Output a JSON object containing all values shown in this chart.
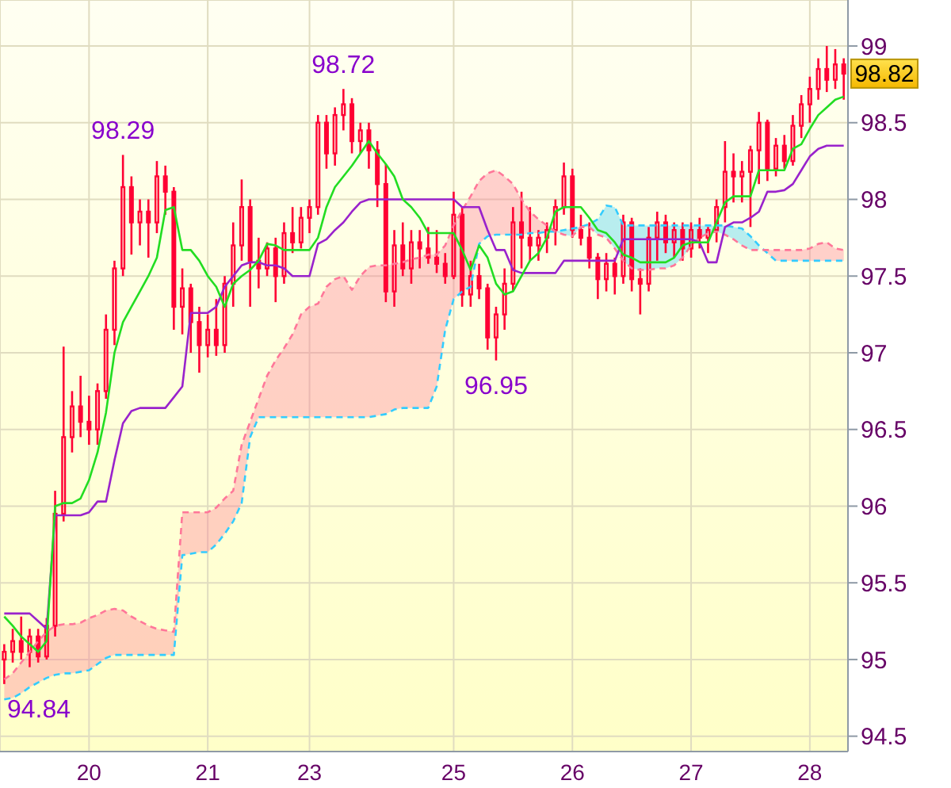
{
  "chart_data": {
    "type": "candlestick",
    "color": "#ff0033",
    "categories": [
      null,
      null,
      null,
      null,
      null,
      null,
      null,
      null,
      null,
      null,
      "20",
      null,
      null,
      null,
      null,
      null,
      null,
      null,
      null,
      null,
      null,
      null,
      null,
      null,
      "21",
      null,
      null,
      null,
      null,
      null,
      null,
      null,
      null,
      null,
      null,
      null,
      "23",
      null,
      null,
      null,
      null,
      null,
      null,
      null,
      null,
      null,
      null,
      null,
      null,
      null,
      null,
      null,
      null,
      "25",
      null,
      null,
      null,
      null,
      null,
      null,
      null,
      null,
      null,
      null,
      null,
      null,
      null,
      "26",
      null,
      null,
      null,
      null,
      null,
      null,
      null,
      null,
      null,
      null,
      null,
      null,
      null,
      "27",
      null,
      null,
      null,
      null,
      null,
      null,
      null,
      null,
      null,
      null,
      null,
      null,
      null,
      "28",
      null,
      null,
      null,
      null
    ],
    "ohlc": [
      [
        95.0,
        95.1,
        94.84,
        95.05
      ],
      [
        95.05,
        95.2,
        94.98,
        95.12
      ],
      [
        95.12,
        95.28,
        95.0,
        95.05
      ],
      [
        95.05,
        95.2,
        94.95,
        95.15
      ],
      [
        95.15,
        95.2,
        94.98,
        95.02
      ],
      [
        95.02,
        95.27,
        95.0,
        95.22
      ],
      [
        95.22,
        96.1,
        95.15,
        95.95
      ],
      [
        95.95,
        97.04,
        95.9,
        96.45
      ],
      [
        96.45,
        96.75,
        96.35,
        96.65
      ],
      [
        96.65,
        96.85,
        96.45,
        96.55
      ],
      [
        96.55,
        96.72,
        96.4,
        96.5
      ],
      [
        96.5,
        96.8,
        96.4,
        96.75
      ],
      [
        96.75,
        97.25,
        96.7,
        97.15
      ],
      [
        97.15,
        97.6,
        97.05,
        97.55
      ],
      [
        97.55,
        98.29,
        97.5,
        98.08
      ],
      [
        98.08,
        98.15,
        97.64,
        97.85
      ],
      [
        97.85,
        98.0,
        97.7,
        97.92
      ],
      [
        97.92,
        98.0,
        97.62,
        97.85
      ],
      [
        97.85,
        98.25,
        97.78,
        98.15
      ],
      [
        98.15,
        98.22,
        97.9,
        98.05
      ],
      [
        98.05,
        98.08,
        97.15,
        97.3
      ],
      [
        97.3,
        97.55,
        97.12,
        97.42
      ],
      [
        97.42,
        97.45,
        97.0,
        97.2
      ],
      [
        97.2,
        97.3,
        96.87,
        97.05
      ],
      [
        97.05,
        97.25,
        96.97,
        97.15
      ],
      [
        97.15,
        97.35,
        96.98,
        97.05
      ],
      [
        97.05,
        97.5,
        97.0,
        97.45
      ],
      [
        97.45,
        97.85,
        97.3,
        97.7
      ],
      [
        97.7,
        98.13,
        97.6,
        97.95
      ],
      [
        97.95,
        98.0,
        97.3,
        97.6
      ],
      [
        97.6,
        97.75,
        97.42,
        97.55
      ],
      [
        97.55,
        97.72,
        97.5,
        97.68
      ],
      [
        97.68,
        97.75,
        97.33,
        97.5
      ],
      [
        97.5,
        97.85,
        97.45,
        97.78
      ],
      [
        97.78,
        97.95,
        97.65,
        97.72
      ],
      [
        97.72,
        97.95,
        97.68,
        97.88
      ],
      [
        97.88,
        98.0,
        97.78,
        97.95
      ],
      [
        97.95,
        98.55,
        97.9,
        98.5
      ],
      [
        98.5,
        98.55,
        98.2,
        98.3
      ],
      [
        98.3,
        98.6,
        98.22,
        98.55
      ],
      [
        98.55,
        98.72,
        98.45,
        98.62
      ],
      [
        98.62,
        98.66,
        98.3,
        98.38
      ],
      [
        98.38,
        98.5,
        98.3,
        98.45
      ],
      [
        98.45,
        98.5,
        98.2,
        98.32
      ],
      [
        98.32,
        98.38,
        97.95,
        98.1
      ],
      [
        98.1,
        98.23,
        97.33,
        97.4
      ],
      [
        97.4,
        97.8,
        97.3,
        97.7
      ],
      [
        97.7,
        97.85,
        97.5,
        97.55
      ],
      [
        97.55,
        97.8,
        97.45,
        97.72
      ],
      [
        97.72,
        97.8,
        97.55,
        97.68
      ],
      [
        97.68,
        97.82,
        97.58,
        97.62
      ],
      [
        97.62,
        97.8,
        97.52,
        97.58
      ],
      [
        97.58,
        97.65,
        97.45,
        97.5
      ],
      [
        97.5,
        98.05,
        97.48,
        97.9
      ],
      [
        97.9,
        97.95,
        97.3,
        97.38
      ],
      [
        97.38,
        97.6,
        97.3,
        97.5
      ],
      [
        97.5,
        97.58,
        97.35,
        97.42
      ],
      [
        97.42,
        97.45,
        97.02,
        97.1
      ],
      [
        97.1,
        97.3,
        96.95,
        97.25
      ],
      [
        97.25,
        97.55,
        97.15,
        97.45
      ],
      [
        97.45,
        97.95,
        97.4,
        97.85
      ],
      [
        97.85,
        98.05,
        97.55,
        97.75
      ],
      [
        97.75,
        97.95,
        97.6,
        97.7
      ],
      [
        97.7,
        97.8,
        97.6,
        97.75
      ],
      [
        97.75,
        97.85,
        97.65,
        97.8
      ],
      [
        97.8,
        98.0,
        97.7,
        97.95
      ],
      [
        97.95,
        98.24,
        97.9,
        98.15
      ],
      [
        98.15,
        98.2,
        97.75,
        97.8
      ],
      [
        97.8,
        97.9,
        97.7,
        97.75
      ],
      [
        97.75,
        97.85,
        97.55,
        97.62
      ],
      [
        97.62,
        97.65,
        97.35,
        97.48
      ],
      [
        97.48,
        97.65,
        97.4,
        97.58
      ],
      [
        97.58,
        97.62,
        97.38,
        97.5
      ],
      [
        97.5,
        97.9,
        97.45,
        97.85
      ],
      [
        97.85,
        97.88,
        97.4,
        97.48
      ],
      [
        97.48,
        97.55,
        97.25,
        97.45
      ],
      [
        97.45,
        97.82,
        97.4,
        97.75
      ],
      [
        97.75,
        97.92,
        97.6,
        97.85
      ],
      [
        97.85,
        97.9,
        97.65,
        97.72
      ],
      [
        97.72,
        97.85,
        97.62,
        97.8
      ],
      [
        97.8,
        97.85,
        97.6,
        97.68
      ],
      [
        97.68,
        97.85,
        97.62,
        97.8
      ],
      [
        97.8,
        97.88,
        97.68,
        97.75
      ],
      [
        97.75,
        97.82,
        97.65,
        97.8
      ],
      [
        97.8,
        98.0,
        97.72,
        97.95
      ],
      [
        97.95,
        98.38,
        97.85,
        98.18
      ],
      [
        98.18,
        98.3,
        97.98,
        98.15
      ],
      [
        98.15,
        98.25,
        97.98,
        98.18
      ],
      [
        98.18,
        98.35,
        97.82,
        98.32
      ],
      [
        98.32,
        98.57,
        98.1,
        98.5
      ],
      [
        98.5,
        98.52,
        98.12,
        98.2
      ],
      [
        98.2,
        98.4,
        98.15,
        98.35
      ],
      [
        98.35,
        98.42,
        98.2,
        98.25
      ],
      [
        98.25,
        98.55,
        98.22,
        98.48
      ],
      [
        98.48,
        98.68,
        98.4,
        98.62
      ],
      [
        98.62,
        98.8,
        98.5,
        98.72
      ],
      [
        98.72,
        98.92,
        98.65,
        98.85
      ],
      [
        98.85,
        99.0,
        98.7,
        98.78
      ],
      [
        98.78,
        98.98,
        98.72,
        98.88
      ],
      [
        98.88,
        98.92,
        98.65,
        98.82
      ]
    ],
    "series": [
      {
        "type": "line",
        "color": "#33ccff",
        "line_style": "dashed",
        "values": [
          94.74,
          94.75,
          94.78,
          94.82,
          94.85,
          94.88,
          94.9,
          94.91,
          94.91,
          94.92,
          94.93,
          94.97,
          95.01,
          95.03,
          95.03,
          95.03,
          95.03,
          95.03,
          95.03,
          95.03,
          95.03,
          95.68,
          95.69,
          95.7,
          95.7,
          95.75,
          95.82,
          95.9,
          96.02,
          96.45,
          96.58,
          96.58,
          96.58,
          96.58,
          96.58,
          96.58,
          96.58,
          96.58,
          96.58,
          96.58,
          96.58,
          96.58,
          96.58,
          96.58,
          96.59,
          96.6,
          96.63,
          96.64,
          96.64,
          96.64,
          96.64,
          96.78,
          97.15,
          97.35,
          97.4,
          97.43,
          97.71,
          97.76,
          97.77,
          97.77,
          97.77,
          97.77,
          97.78,
          97.78,
          97.79,
          97.79,
          97.8,
          97.81,
          97.82,
          97.84,
          97.87,
          97.96,
          97.95,
          97.83,
          97.83,
          97.83,
          97.83,
          97.83,
          97.83,
          97.83,
          97.83,
          97.83,
          97.83,
          97.83,
          97.83,
          97.83,
          97.82,
          97.81,
          97.76,
          97.7,
          97.65,
          97.6,
          97.6,
          97.6,
          97.6,
          97.6,
          97.6,
          97.6,
          97.6,
          97.6
        ],
        "lower": [
          null,
          null,
          null,
          null,
          null,
          null,
          null,
          null,
          null,
          null,
          null,
          null,
          null,
          null,
          null,
          null,
          null,
          null,
          null,
          null,
          null,
          null,
          null,
          null,
          null,
          null,
          null,
          null,
          null,
          null,
          null,
          null,
          null,
          null,
          null,
          null,
          null,
          null,
          null,
          null,
          null,
          null,
          null,
          null,
          null,
          null,
          null,
          null,
          null,
          null,
          null,
          null,
          null,
          null,
          null,
          null,
          null,
          null,
          null,
          null,
          null,
          null,
          null,
          null,
          null,
          97.79,
          97.77,
          97.76,
          97.82,
          97.82,
          97.77,
          97.75,
          97.68,
          97.6,
          97.55,
          97.54,
          97.54,
          97.55,
          97.55,
          97.57,
          97.62,
          97.7,
          97.75,
          97.78,
          97.79,
          97.77,
          97.74,
          97.7,
          97.67,
          97.67,
          null,
          null,
          null,
          null,
          null,
          null,
          null,
          null,
          null,
          null
        ],
        "upper": [
          null,
          null,
          null,
          null,
          null,
          null,
          null,
          null,
          null,
          null,
          null,
          null,
          null,
          null,
          null,
          null,
          null,
          null,
          null,
          null,
          null,
          null,
          null,
          null,
          null,
          null,
          null,
          null,
          null,
          null,
          null,
          null,
          null,
          null,
          null,
          null,
          null,
          null,
          null,
          null,
          null,
          null,
          null,
          null,
          null,
          null,
          null,
          null,
          null,
          null,
          null,
          null,
          null,
          null,
          null,
          null,
          null,
          null,
          null,
          null,
          null,
          null,
          null,
          null,
          null,
          97.79,
          97.8,
          97.81,
          97.82,
          97.84,
          97.87,
          97.96,
          97.95,
          97.83,
          97.83,
          97.83,
          97.83,
          97.83,
          97.83,
          97.83,
          97.83,
          97.83,
          97.83,
          97.83,
          97.83,
          97.83,
          97.82,
          97.81,
          97.76,
          97.7,
          null,
          null,
          null,
          null,
          null,
          null,
          null,
          null,
          null,
          null
        ]
      },
      {
        "type": "line",
        "color": "#ff7799",
        "line_style": "dashed",
        "values": [
          94.87,
          94.91,
          94.98,
          95.05,
          95.12,
          95.18,
          95.22,
          95.23,
          95.23,
          95.24,
          95.27,
          95.29,
          95.32,
          95.33,
          95.32,
          95.28,
          95.25,
          95.22,
          95.2,
          95.19,
          95.18,
          95.96,
          95.96,
          95.96,
          95.96,
          95.99,
          96.05,
          96.1,
          96.4,
          96.55,
          96.7,
          96.85,
          96.95,
          97.03,
          97.12,
          97.25,
          97.3,
          97.32,
          97.43,
          97.48,
          97.5,
          97.41,
          97.5,
          97.56,
          97.57,
          97.57,
          97.58,
          97.59,
          97.61,
          97.62,
          97.64,
          97.64,
          97.7,
          97.83,
          97.93,
          98.02,
          98.12,
          98.17,
          98.19,
          98.15,
          98.1,
          98.0,
          97.92,
          97.87,
          97.83,
          97.79,
          97.77,
          97.76,
          97.82,
          97.82,
          97.77,
          97.75,
          97.68,
          97.6,
          97.55,
          97.54,
          97.54,
          97.55,
          97.55,
          97.57,
          97.62,
          97.7,
          97.75,
          97.78,
          97.79,
          97.77,
          97.74,
          97.7,
          97.67,
          97.67,
          97.67,
          97.67,
          97.67,
          97.67,
          97.67,
          97.68,
          97.71,
          97.72,
          97.68,
          97.67
        ],
        "lower": [
          94.74,
          94.75,
          94.78,
          94.82,
          94.85,
          94.88,
          94.9,
          94.91,
          94.91,
          94.92,
          94.93,
          94.97,
          95.01,
          95.03,
          95.03,
          95.03,
          95.03,
          95.03,
          95.03,
          95.03,
          95.03,
          95.68,
          95.69,
          95.7,
          95.7,
          95.75,
          95.82,
          95.9,
          96.02,
          96.45,
          96.58,
          96.58,
          96.58,
          96.58,
          96.58,
          96.58,
          96.58,
          96.58,
          96.58,
          96.58,
          96.58,
          96.58,
          96.58,
          96.58,
          96.59,
          96.6,
          96.63,
          96.64,
          96.64,
          96.64,
          96.64,
          96.78,
          97.15,
          97.35,
          97.4,
          97.43,
          97.71,
          97.76,
          97.77,
          97.77,
          97.77,
          97.77,
          97.78,
          97.78,
          97.79,
          97.79,
          null,
          null,
          null,
          null,
          null,
          null,
          null,
          null,
          null,
          null,
          null,
          null,
          null,
          null,
          null,
          null,
          null,
          null,
          null,
          null,
          null,
          null,
          null,
          null,
          97.65,
          97.6,
          97.6,
          97.6,
          97.6,
          97.6,
          97.6,
          97.6,
          97.6,
          97.6
        ],
        "upper": [
          94.87,
          94.91,
          94.98,
          95.05,
          95.12,
          95.18,
          95.22,
          95.23,
          95.23,
          95.24,
          95.27,
          95.29,
          95.32,
          95.33,
          95.32,
          95.28,
          95.25,
          95.22,
          95.2,
          95.19,
          95.18,
          95.96,
          95.96,
          95.96,
          95.96,
          95.99,
          96.05,
          96.1,
          96.4,
          96.55,
          96.7,
          96.85,
          96.95,
          97.03,
          97.12,
          97.25,
          97.3,
          97.32,
          97.43,
          97.48,
          97.5,
          97.41,
          97.5,
          97.56,
          97.57,
          97.57,
          97.58,
          97.59,
          97.61,
          97.62,
          97.64,
          97.64,
          97.7,
          97.83,
          97.93,
          98.02,
          98.12,
          98.17,
          98.19,
          98.15,
          98.1,
          98.0,
          97.92,
          97.87,
          97.83,
          97.79,
          null,
          null,
          null,
          null,
          null,
          null,
          null,
          null,
          null,
          null,
          null,
          null,
          null,
          null,
          null,
          null,
          null,
          null,
          null,
          null,
          null,
          null,
          null,
          null,
          97.67,
          97.67,
          97.67,
          97.67,
          97.67,
          97.68,
          97.71,
          97.72,
          97.68,
          97.67
        ]
      },
      {
        "type": "line",
        "color": "#9922cc",
        "values": [
          95.3,
          95.3,
          95.3,
          95.3,
          95.25,
          95.2,
          95.94,
          95.94,
          95.94,
          95.94,
          95.96,
          96.03,
          96.03,
          96.3,
          96.54,
          96.62,
          96.64,
          96.64,
          96.64,
          96.64,
          96.71,
          96.78,
          97.26,
          97.26,
          97.26,
          97.3,
          97.43,
          97.5,
          97.57,
          97.59,
          97.59,
          97.57,
          97.57,
          97.55,
          97.5,
          97.5,
          97.5,
          97.71,
          97.74,
          97.8,
          97.85,
          97.92,
          97.98,
          98.0,
          98.0,
          98.0,
          98.0,
          98.0,
          98.0,
          98.0,
          98.0,
          98.0,
          98.0,
          98.0,
          97.95,
          97.95,
          97.95,
          97.8,
          97.67,
          97.67,
          97.54,
          97.52,
          97.52,
          97.52,
          97.52,
          97.52,
          97.6,
          97.6,
          97.6,
          97.6,
          97.6,
          97.6,
          97.6,
          97.74,
          97.74,
          97.74,
          97.74,
          97.74,
          97.74,
          97.74,
          97.74,
          97.74,
          97.72,
          97.59,
          97.59,
          97.82,
          97.85,
          97.85,
          97.88,
          97.92,
          98.05,
          98.05,
          98.06,
          98.1,
          98.19,
          98.28,
          98.33,
          98.35,
          98.35,
          98.35
        ]
      },
      {
        "type": "line",
        "color": "#22dd22",
        "values": [
          95.28,
          95.22,
          95.15,
          95.1,
          95.05,
          95.12,
          96.0,
          96.02,
          96.02,
          96.05,
          96.17,
          96.35,
          96.61,
          97.0,
          97.2,
          97.3,
          97.4,
          97.5,
          97.62,
          97.93,
          97.95,
          97.67,
          97.67,
          97.6,
          97.5,
          97.43,
          97.3,
          97.45,
          97.5,
          97.54,
          97.6,
          97.71,
          97.7,
          97.67,
          97.67,
          97.67,
          97.67,
          97.75,
          97.95,
          98.08,
          98.15,
          98.22,
          98.3,
          98.38,
          98.3,
          98.23,
          98.15,
          98.0,
          97.95,
          97.88,
          97.78,
          97.78,
          97.78,
          97.78,
          97.67,
          97.54,
          97.7,
          97.62,
          97.45,
          97.38,
          97.4,
          97.5,
          97.6,
          97.65,
          97.75,
          97.92,
          97.95,
          97.95,
          97.95,
          97.88,
          97.8,
          97.78,
          97.72,
          97.64,
          97.62,
          97.59,
          97.59,
          97.59,
          97.59,
          97.62,
          97.7,
          97.72,
          97.72,
          97.72,
          97.85,
          97.98,
          98.02,
          98.02,
          98.02,
          98.19,
          98.19,
          98.19,
          98.19,
          98.33,
          98.36,
          98.46,
          98.55,
          98.6,
          98.65,
          98.67
        ]
      }
    ],
    "ylim": [
      94.4,
      99.3
    ],
    "yticks": [
      94.5,
      95,
      95.5,
      96,
      96.5,
      97,
      97.5,
      98,
      98.5,
      99
    ],
    "grid": true,
    "annotations": [
      {
        "text": "98.29",
        "y": 98.29
      },
      {
        "text": "98.72",
        "y": 98.72
      },
      {
        "text": "96.95",
        "y": 96.95
      },
      {
        "text": "94.84",
        "y": 94.84
      },
      {
        "text": "98.82",
        "y": 98.82
      }
    ]
  }
}
